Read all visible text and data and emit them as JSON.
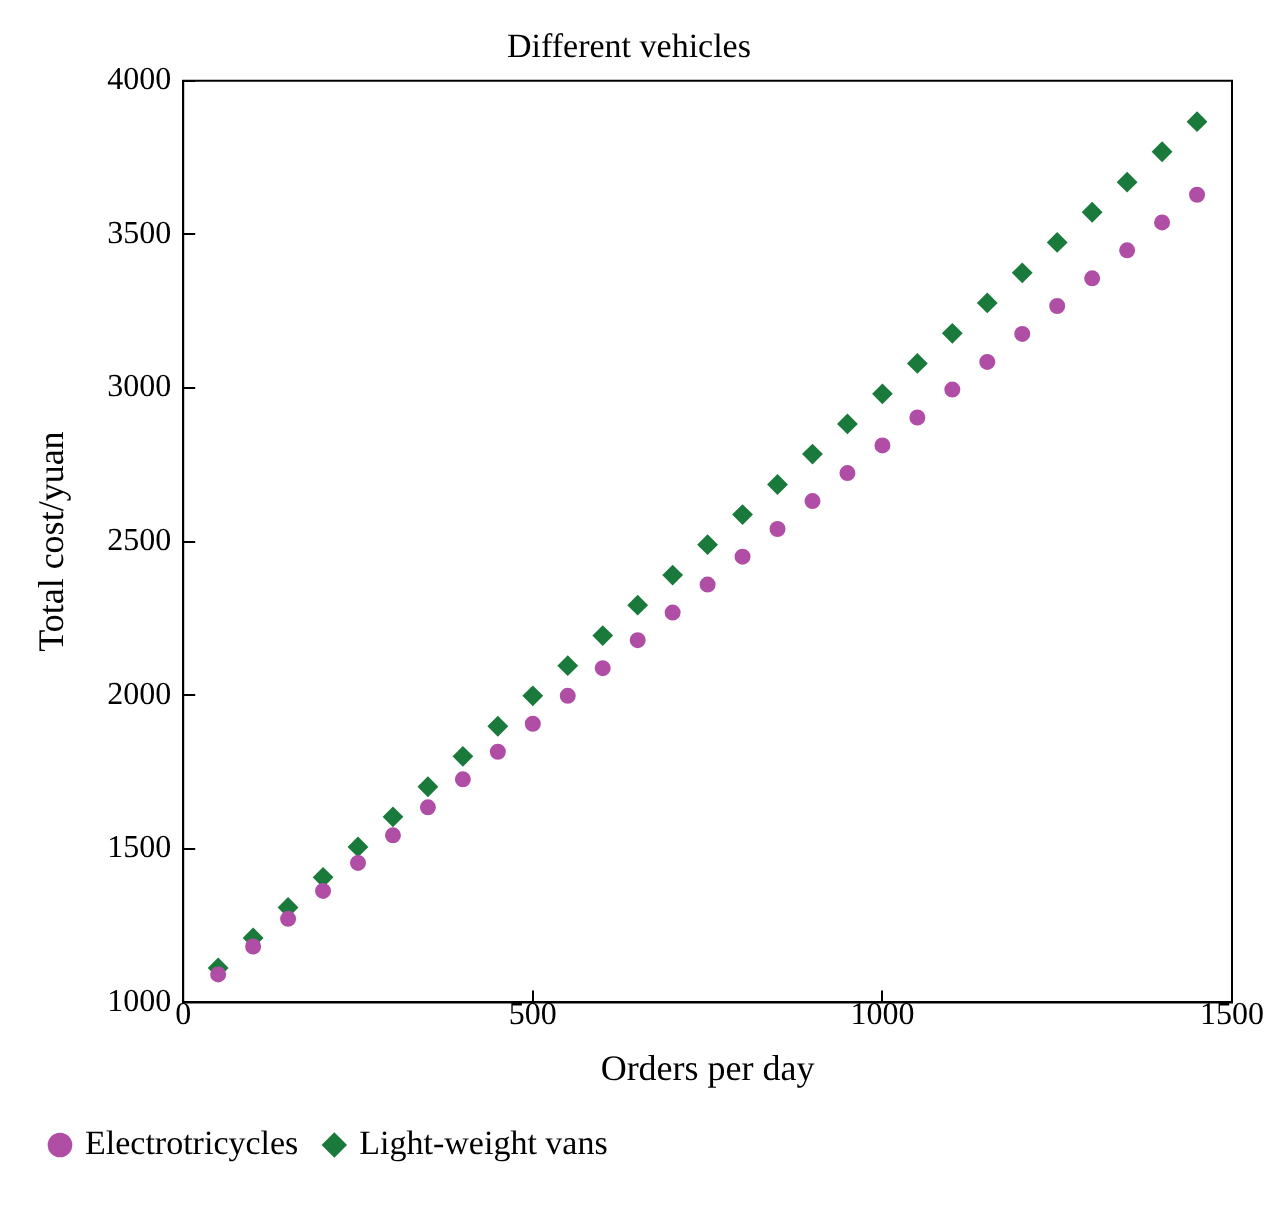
{
  "chart_data": {
    "type": "scatter",
    "title": "Different vehicles",
    "xlabel": "Orders per day",
    "ylabel": "Total cost/yuan",
    "x": [
      50,
      100,
      150,
      200,
      250,
      300,
      350,
      400,
      450,
      500,
      550,
      600,
      650,
      700,
      750,
      800,
      850,
      900,
      950,
      1000,
      1050,
      1100,
      1150,
      1200,
      1250,
      1300,
      1350,
      1400,
      1450
    ],
    "series": [
      {
        "name": "Electrotricycles",
        "color": "#b04ea6",
        "marker": "circle",
        "values": [
          1091,
          1182,
          1272,
          1363,
          1454,
          1544,
          1635,
          1726,
          1816,
          1907,
          1998,
          2088,
          2179,
          2269,
          2360,
          2451,
          2541,
          2632,
          2723,
          2813,
          2904,
          2995,
          3085,
          3176,
          3267,
          3357,
          3448,
          3539,
          3629
        ]
      },
      {
        "name": "Light-weight vans",
        "color": "#1a7a3c",
        "marker": "diamond",
        "values": [
          1112,
          1210,
          1309,
          1407,
          1506,
          1604,
          1702,
          1801,
          1899,
          1998,
          2096,
          2194,
          2293,
          2391,
          2490,
          2588,
          2686,
          2785,
          2883,
          2981,
          3080,
          3178,
          3277,
          3375,
          3474,
          3572,
          3670,
          3769,
          3867
        ]
      }
    ],
    "xlim": [
      0,
      1500
    ],
    "xticks": [
      0,
      500,
      1000,
      1500
    ],
    "ylim": [
      1000,
      4000
    ],
    "yticks": [
      1000,
      1500,
      2000,
      2500,
      3000,
      3500,
      4000
    ],
    "grid": false,
    "legend": "bottom left"
  }
}
